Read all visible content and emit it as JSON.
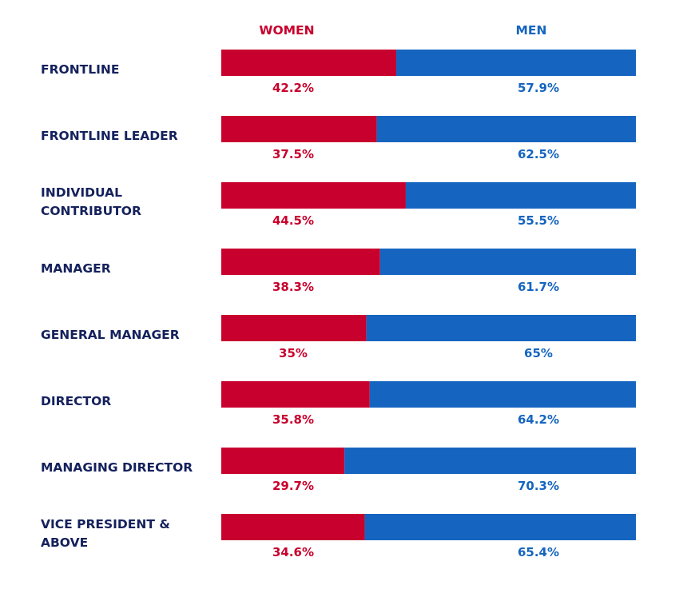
{
  "chart_data": {
    "type": "bar",
    "orientation": "horizontal",
    "stacked": true,
    "normalized": true,
    "title": "",
    "xlabel": "",
    "ylabel": "",
    "xlim": [
      0,
      100
    ],
    "legend": [
      "WOMEN",
      "MEN"
    ],
    "categories": [
      [
        "FRONTLINE"
      ],
      [
        "FRONTLINE LEADER"
      ],
      [
        "INDIVIDUAL",
        "CONTRIBUTOR"
      ],
      [
        "MANAGER"
      ],
      [
        "GENERAL MANAGER"
      ],
      [
        "DIRECTOR"
      ],
      [
        "MANAGING DIRECTOR"
      ],
      [
        "VICE PRESIDENT &",
        "ABOVE"
      ]
    ],
    "series": [
      {
        "name": "WOMEN",
        "color": "#c8002d",
        "values": [
          42.2,
          37.5,
          44.5,
          38.3,
          35,
          35.8,
          29.7,
          34.6
        ],
        "labels": [
          "42.2%",
          "37.5%",
          "44.5%",
          "38.3%",
          "35%",
          "35.8%",
          "29.7%",
          "34.6%"
        ]
      },
      {
        "name": "MEN",
        "color": "#1565c0",
        "values": [
          57.9,
          62.5,
          55.5,
          61.7,
          65,
          64.2,
          70.3,
          65.4
        ],
        "labels": [
          "57.9%",
          "62.5%",
          "55.5%",
          "61.7%",
          "65%",
          "64.2%",
          "70.3%",
          "65.4%"
        ]
      }
    ]
  },
  "colors": {
    "category_text": "#14215c",
    "women": "#c8002d",
    "men": "#1565c0"
  }
}
